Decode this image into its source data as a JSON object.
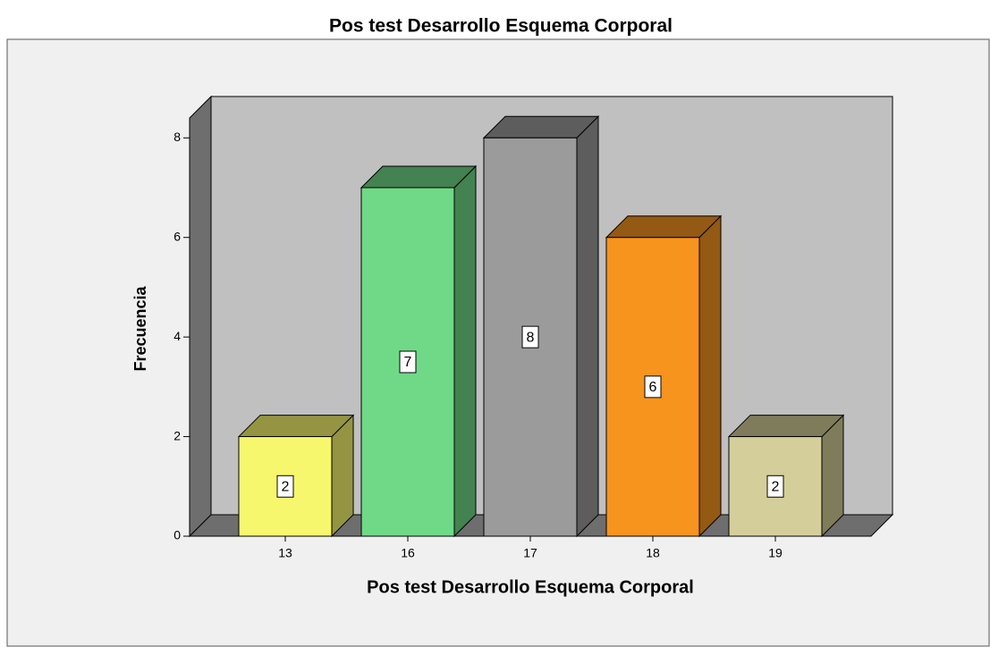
{
  "chart_data": {
    "type": "bar3d",
    "title": "Pos test Desarrollo Esquema Corporal",
    "x_label": "Pos test Desarrollo Esquema Corporal",
    "y_label": "Frecuencia",
    "categories": [
      "13",
      "16",
      "17",
      "18",
      "19"
    ],
    "values": [
      2,
      7,
      8,
      6,
      2
    ],
    "colors": [
      "#f7f76e",
      "#6fd987",
      "#9b9b9b",
      "#f7941e",
      "#d4cf9a"
    ],
    "ylim": [
      0,
      8.4
    ],
    "yticks": [
      0,
      2,
      4,
      6,
      8
    ]
  }
}
